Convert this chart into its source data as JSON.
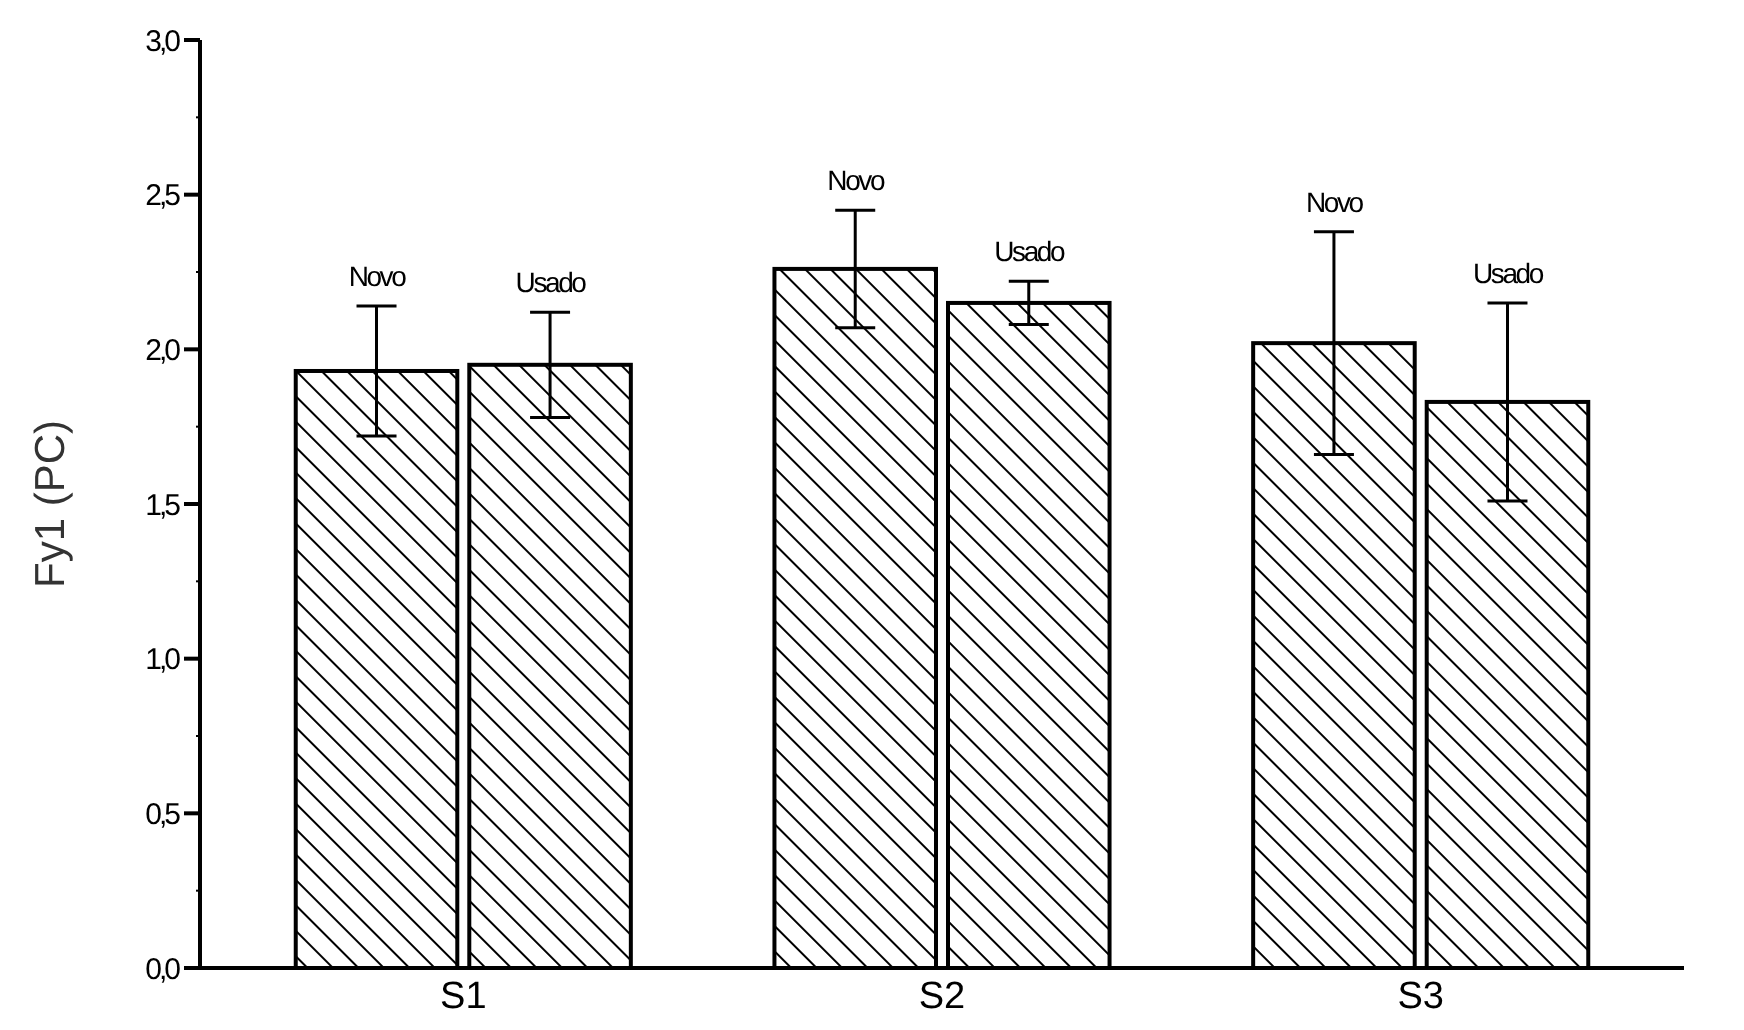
{
  "chart_data": {
    "type": "bar",
    "ylabel": "Fy1 (PC)",
    "categories": [
      "S1",
      "S2",
      "S3"
    ],
    "series": [
      {
        "name": "Novo",
        "color": "#000000",
        "values": [
          1.93,
          2.26,
          2.02
        ],
        "errors": [
          0.21,
          0.19,
          0.36
        ]
      },
      {
        "name": "Usado",
        "color": "#000000",
        "values": [
          1.95,
          2.15,
          1.83
        ],
        "errors": [
          0.17,
          0.07,
          0.32
        ]
      }
    ],
    "ylim": [
      0,
      3
    ],
    "yticks": [
      {
        "value": 0,
        "label": "0,0"
      },
      {
        "value": 0.25,
        "label": null
      },
      {
        "value": 0.5,
        "label": "0,5"
      },
      {
        "value": 0.75,
        "label": null
      },
      {
        "value": 1,
        "label": "1,0"
      },
      {
        "value": 1.25,
        "label": null
      },
      {
        "value": 1.5,
        "label": "1,5"
      },
      {
        "value": 1.75,
        "label": null
      },
      {
        "value": 2,
        "label": "2,0"
      },
      {
        "value": 2.25,
        "label": null
      },
      {
        "value": 2.5,
        "label": "2,5"
      },
      {
        "value": 2.75,
        "label": null
      },
      {
        "value": 3,
        "label": "3,0"
      }
    ],
    "grid": false
  }
}
